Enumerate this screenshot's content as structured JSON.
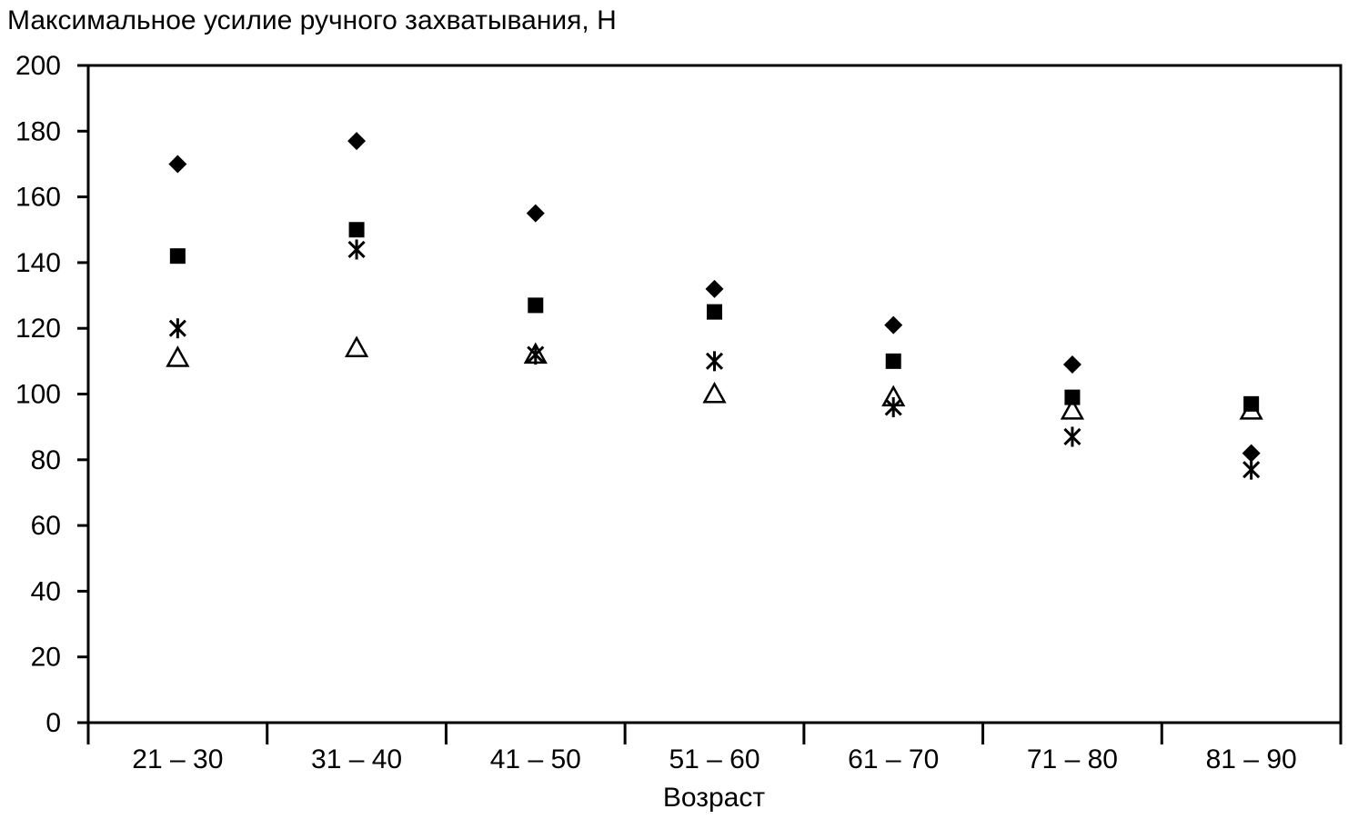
{
  "chart_data": {
    "type": "scatter",
    "title": "",
    "ylabel": "Максимальное усилие ручного захватывания, Н",
    "xlabel": "Возраст",
    "categories": [
      "21 – 30",
      "31 – 40",
      "41 – 50",
      "51 – 60",
      "61 – 70",
      "71 – 80",
      "81 – 90"
    ],
    "ylim": [
      0,
      200
    ],
    "yticks": [
      0,
      20,
      40,
      60,
      80,
      100,
      120,
      140,
      160,
      180,
      200
    ],
    "grid": false,
    "legend": "none",
    "series": [
      {
        "marker": "diamond",
        "values": [
          170,
          177,
          155,
          132,
          121,
          109,
          82
        ]
      },
      {
        "marker": "square",
        "values": [
          142,
          150,
          127,
          125,
          110,
          99,
          97
        ]
      },
      {
        "marker": "asterisk",
        "values": [
          120,
          144,
          112,
          110,
          96,
          87,
          77
        ]
      },
      {
        "marker": "triangle",
        "values": [
          111,
          114,
          112,
          100,
          99,
          95,
          95
        ]
      }
    ]
  }
}
